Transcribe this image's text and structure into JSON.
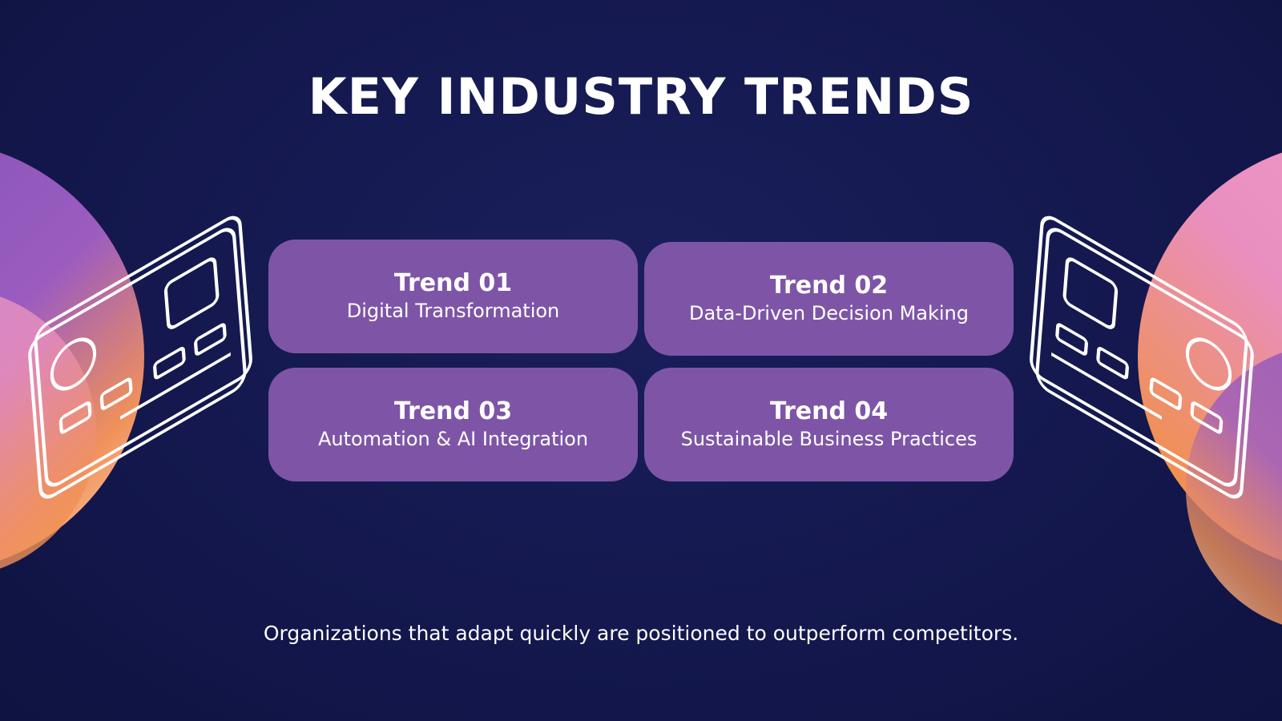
{
  "header": {
    "title": "KEY INDUSTRY TRENDS"
  },
  "trends": [
    {
      "label": "Trend 01",
      "text": "Digital Transformation"
    },
    {
      "label": "Trend 02",
      "text": "Data-Driven Decision Making"
    },
    {
      "label": "Trend 03",
      "text": "Automation & AI Integration"
    },
    {
      "label": "Trend 04",
      "text": "Sustainable Business Practices"
    }
  ],
  "footer": {
    "text": "Organizations that adapt quickly are positioned to outperform competitors."
  }
}
